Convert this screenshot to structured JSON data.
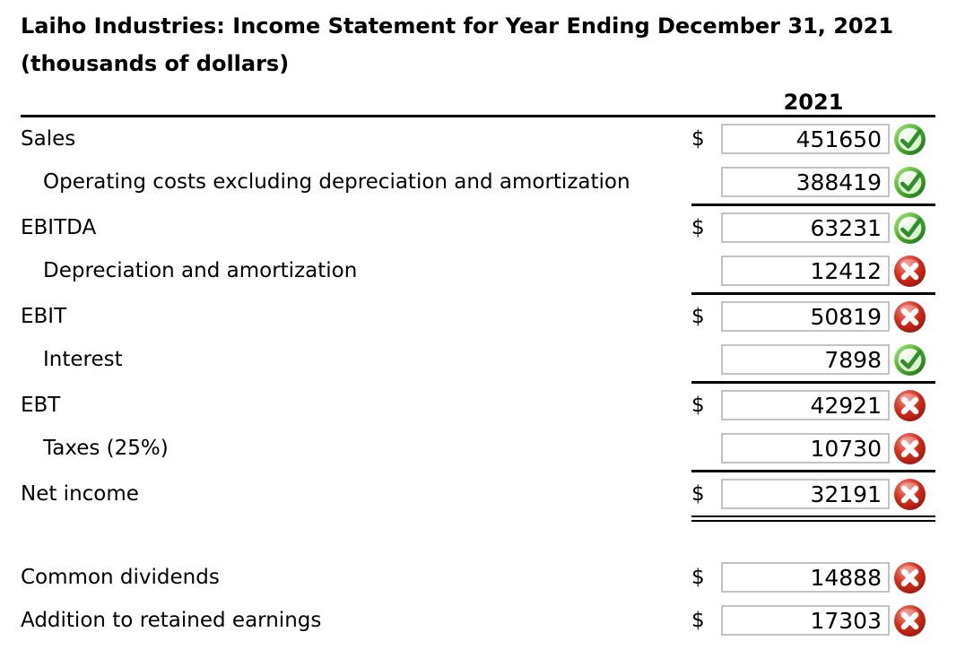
{
  "title": {
    "line1": "Laiho Industries: Income Statement for Year Ending December 31, 2021",
    "line2": "(thousands of dollars)"
  },
  "table": {
    "year_header": "2021",
    "currency_symbol": "$"
  },
  "rows": [
    {
      "label": "Sales",
      "indent": false,
      "dollar": true,
      "value": "451650",
      "status": "correct",
      "rule_after": "none"
    },
    {
      "label": "Operating costs excluding depreciation and amortization",
      "indent": true,
      "dollar": false,
      "value": "388419",
      "status": "correct",
      "rule_after": "single"
    },
    {
      "label": "EBITDA",
      "indent": false,
      "dollar": true,
      "value": "63231",
      "status": "correct",
      "rule_after": "none"
    },
    {
      "label": "Depreciation and amortization",
      "indent": true,
      "dollar": false,
      "value": "12412",
      "status": "incorrect",
      "rule_after": "single"
    },
    {
      "label": "EBIT",
      "indent": false,
      "dollar": true,
      "value": "50819",
      "status": "incorrect",
      "rule_after": "none"
    },
    {
      "label": "Interest",
      "indent": true,
      "dollar": false,
      "value": "7898",
      "status": "correct",
      "rule_after": "single"
    },
    {
      "label": "EBT",
      "indent": false,
      "dollar": true,
      "value": "42921",
      "status": "incorrect",
      "rule_after": "none"
    },
    {
      "label": "Taxes (25%)",
      "indent": true,
      "dollar": false,
      "value": "10730",
      "status": "incorrect",
      "rule_after": "single"
    },
    {
      "label": "Net income",
      "indent": false,
      "dollar": true,
      "value": "32191",
      "status": "incorrect",
      "rule_after": "double"
    }
  ],
  "footer_rows": [
    {
      "label": "Common dividends",
      "indent": false,
      "dollar": true,
      "value": "14888",
      "status": "incorrect",
      "rule_after": "none"
    },
    {
      "label": "Addition to retained earnings",
      "indent": false,
      "dollar": true,
      "value": "17303",
      "status": "incorrect",
      "rule_after": "none"
    }
  ],
  "icons": {
    "correct": "green-check-icon",
    "incorrect": "red-x-icon"
  },
  "colors": {
    "rule": "#000000",
    "input_border": "#c3c3c3",
    "correct_green": "#2d8f2d",
    "incorrect_red": "#c41f10",
    "text": "#000000",
    "background": "#ffffff"
  }
}
